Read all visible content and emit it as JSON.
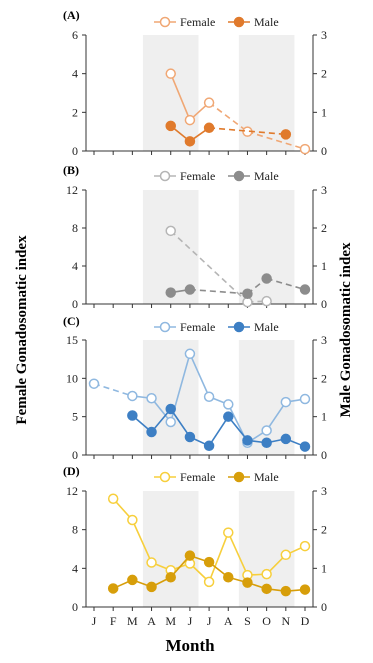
{
  "figure": {
    "left_ylabel": "Female Gonadosomatic index",
    "right_ylabel": "Male Gonadosomatic index",
    "xlabel": "Month",
    "months": [
      "J",
      "F",
      "M",
      "A",
      "M",
      "J",
      "J",
      "A",
      "S",
      "O",
      "N",
      "D"
    ]
  },
  "chart_data": [
    {
      "type": "line",
      "panel": "(A)",
      "color": "#e07a2c",
      "female_color": "#f0a774",
      "ylim_left": [
        0,
        6
      ],
      "yticks_left": [
        0,
        2,
        4,
        6
      ],
      "ylim_right": [
        0,
        3
      ],
      "yticks_right": [
        0,
        1,
        2,
        3
      ],
      "shaded_months": [
        [
          3,
          5
        ],
        [
          8,
          10
        ]
      ],
      "series": [
        {
          "name": "Female",
          "axis": "left",
          "marker": "open",
          "points": [
            [
              4,
              4.0
            ],
            [
              5,
              1.6
            ],
            [
              6,
              2.5
            ],
            [
              8,
              1.0
            ],
            [
              11,
              0.1
            ]
          ],
          "dashed_from": 6
        },
        {
          "name": "Male",
          "axis": "right",
          "marker": "filled",
          "points": [
            [
              4,
              0.65
            ],
            [
              5,
              0.25
            ],
            [
              6,
              0.6
            ],
            [
              10,
              0.43
            ]
          ],
          "dashed_from": 6
        }
      ]
    },
    {
      "type": "line",
      "panel": "(B)",
      "color": "#8c8c8c",
      "female_color": "#b5b5b5",
      "ylim_left": [
        0,
        12
      ],
      "yticks_left": [
        0,
        4,
        8,
        12
      ],
      "ylim_right": [
        0,
        3
      ],
      "yticks_right": [
        0,
        1,
        2,
        3
      ],
      "shaded_months": [
        [
          3,
          5
        ],
        [
          8,
          10
        ]
      ],
      "series": [
        {
          "name": "Female",
          "axis": "left",
          "marker": "open",
          "points": [
            [
              4,
              7.7
            ],
            [
              8,
              0.2
            ],
            [
              9,
              0.3
            ]
          ],
          "dashed_from": 4
        },
        {
          "name": "Male",
          "axis": "right",
          "marker": "filled",
          "points": [
            [
              4,
              0.3
            ],
            [
              5,
              0.38
            ],
            [
              8,
              0.27
            ],
            [
              9,
              0.67
            ],
            [
              11,
              0.38
            ]
          ],
          "dashed_from": 5
        }
      ]
    },
    {
      "type": "line",
      "panel": "(C)",
      "color": "#3d7fc4",
      "female_color": "#8fb8e0",
      "ylim_left": [
        0,
        15
      ],
      "yticks_left": [
        0,
        5,
        10,
        15
      ],
      "ylim_right": [
        0,
        3
      ],
      "yticks_right": [
        0,
        1,
        2,
        3
      ],
      "shaded_months": [
        [
          3,
          5
        ],
        [
          8,
          10
        ]
      ],
      "series": [
        {
          "name": "Female",
          "axis": "left",
          "marker": "open",
          "points": [
            [
              0,
              9.3
            ],
            [
              2,
              7.7
            ],
            [
              3,
              7.4
            ],
            [
              4,
              4.3
            ],
            [
              5,
              13.2
            ],
            [
              6,
              7.6
            ],
            [
              7,
              6.6
            ],
            [
              8,
              1.6
            ],
            [
              9,
              3.2
            ],
            [
              10,
              6.9
            ],
            [
              11,
              7.3
            ]
          ],
          "dashed_until": 2
        },
        {
          "name": "Male",
          "axis": "right",
          "marker": "filled",
          "points": [
            [
              2,
              1.03
            ],
            [
              3,
              0.6
            ],
            [
              4,
              1.2
            ],
            [
              5,
              0.47
            ],
            [
              6,
              0.24
            ],
            [
              7,
              1.0
            ],
            [
              8,
              0.38
            ],
            [
              9,
              0.32
            ],
            [
              10,
              0.42
            ],
            [
              11,
              0.22
            ]
          ]
        }
      ]
    },
    {
      "type": "line",
      "panel": "(D)",
      "color": "#d79e0a",
      "female_color": "#f7cf3c",
      "ylim_left": [
        0,
        12
      ],
      "yticks_left": [
        0,
        4,
        8,
        12
      ],
      "ylim_right": [
        0,
        3
      ],
      "yticks_right": [
        0,
        1,
        2,
        3
      ],
      "shaded_months": [
        [
          3,
          5
        ],
        [
          8,
          10
        ]
      ],
      "series": [
        {
          "name": "Female",
          "axis": "left",
          "marker": "open",
          "points": [
            [
              1,
              11.2
            ],
            [
              2,
              9.0
            ],
            [
              3,
              4.6
            ],
            [
              4,
              3.8
            ],
            [
              5,
              4.5
            ],
            [
              6,
              2.6
            ],
            [
              7,
              7.7
            ],
            [
              8,
              3.3
            ],
            [
              9,
              3.4
            ],
            [
              10,
              5.4
            ],
            [
              11,
              6.3
            ]
          ]
        },
        {
          "name": "Male",
          "axis": "right",
          "marker": "filled",
          "points": [
            [
              1,
              0.48
            ],
            [
              2,
              0.7
            ],
            [
              3,
              0.52
            ],
            [
              4,
              0.77
            ],
            [
              5,
              1.33
            ],
            [
              6,
              1.16
            ],
            [
              7,
              0.77
            ],
            [
              8,
              0.63
            ],
            [
              9,
              0.47
            ],
            [
              10,
              0.41
            ],
            [
              11,
              0.45
            ]
          ]
        }
      ]
    }
  ]
}
